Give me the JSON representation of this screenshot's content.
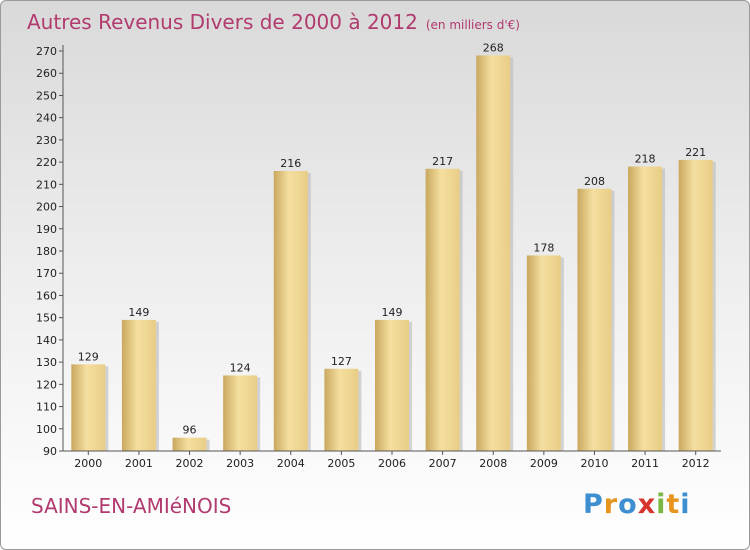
{
  "chart_data": {
    "type": "bar",
    "title": "Autres Revenus Divers de 2000 à 2012",
    "subtitle": "(en milliers d'€)",
    "categories": [
      "2000",
      "2001",
      "2002",
      "2003",
      "2004",
      "2005",
      "2006",
      "2007",
      "2008",
      "2009",
      "2010",
      "2011",
      "2012"
    ],
    "values": [
      129,
      149,
      96,
      124,
      216,
      127,
      149,
      217,
      268,
      178,
      208,
      218,
      221
    ],
    "ylim": [
      90,
      270
    ],
    "ytick_step": 10,
    "grid": false,
    "bar_color": "#e8cd86",
    "bar_color_light": "#f5dfa0",
    "bar_color_dark": "#c9a85e"
  },
  "commune": "SAINS-EN-AMIéNOIS",
  "logo": {
    "letters": [
      {
        "ch": "P",
        "color": "#3d8fd1"
      },
      {
        "ch": "r",
        "color": "#e5941e"
      },
      {
        "ch": "o",
        "color": "#3d8fd1"
      },
      {
        "ch": "x",
        "color": "#d6332f"
      },
      {
        "ch": "i",
        "color": "#7bb843"
      },
      {
        "ch": "t",
        "color": "#e5941e"
      },
      {
        "ch": "i",
        "color": "#3d8fd1"
      }
    ]
  },
  "colors": {
    "title": "#b13a6f",
    "commune": "#b13a6f"
  }
}
